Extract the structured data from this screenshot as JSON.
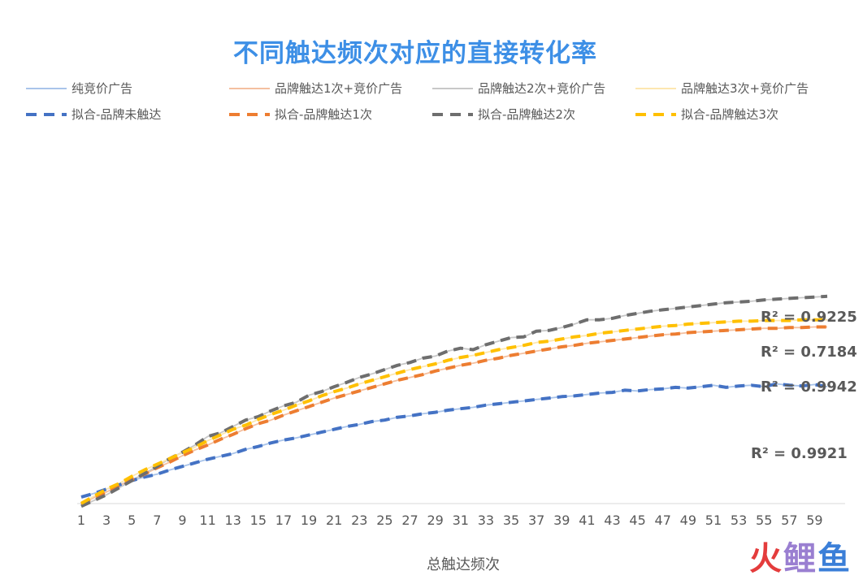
{
  "chart_data": {
    "type": "line",
    "title": "不同触达频次对应的直接转化率",
    "xlabel": "总触达频次",
    "ylabel": "",
    "x": [
      1,
      2,
      3,
      4,
      5,
      6,
      7,
      8,
      9,
      10,
      11,
      12,
      13,
      14,
      15,
      16,
      17,
      18,
      19,
      20,
      21,
      22,
      23,
      24,
      25,
      26,
      27,
      28,
      29,
      30,
      31,
      32,
      33,
      34,
      35,
      36,
      37,
      38,
      39,
      40,
      41,
      42,
      43,
      44,
      45,
      46,
      47,
      48,
      49,
      50,
      51,
      52,
      53,
      54,
      55,
      56,
      57,
      58,
      59,
      60
    ],
    "x_tick_labels": [
      "1",
      "3",
      "5",
      "7",
      "9",
      "11",
      "13",
      "15",
      "17",
      "19",
      "21",
      "23",
      "25",
      "27",
      "29",
      "31",
      "33",
      "35",
      "37",
      "39",
      "41",
      "43",
      "45",
      "47",
      "49",
      "51",
      "53",
      "55",
      "57",
      "59"
    ],
    "ylim": [
      0,
      42
    ],
    "y_tick_labels_shown": false,
    "grid": false,
    "legend_position": "top",
    "series": [
      {
        "name": "纯竞价广告",
        "style": "solid",
        "color": "#a9c4ea",
        "values": [
          0.7,
          1.2,
          1.8,
          2.4,
          3.0,
          3.5,
          3.9,
          4.5,
          5.0,
          5.5,
          6.0,
          6.4,
          6.8,
          7.4,
          7.8,
          8.3,
          8.7,
          9.0,
          9.4,
          9.8,
          10.2,
          10.6,
          10.9,
          11.3,
          11.5,
          11.9,
          12.1,
          12.4,
          12.6,
          12.9,
          13.1,
          13.3,
          13.6,
          13.8,
          14.0,
          14.2,
          14.4,
          14.6,
          14.8,
          14.9,
          15.1,
          15.3,
          15.4,
          15.7,
          15.6,
          15.8,
          15.9,
          16.1,
          16.0,
          16.2,
          16.4,
          16.1,
          16.3,
          16.4,
          16.2,
          16.6,
          16.4,
          16.3,
          16.5,
          16.2
        ]
      },
      {
        "name": "品牌触达1次+竞价广告",
        "style": "solid",
        "color": "#f4c0a0",
        "values": [
          -0.3,
          0.6,
          1.4,
          2.3,
          3.1,
          3.9,
          4.8,
          5.6,
          6.5,
          7.3,
          8.0,
          8.8,
          9.5,
          10.3,
          11.0,
          11.5,
          12.2,
          12.8,
          13.4,
          14.0,
          14.6,
          15.1,
          15.6,
          16.1,
          16.6,
          17.1,
          17.5,
          17.9,
          18.4,
          18.8,
          19.2,
          19.5,
          19.9,
          20.2,
          20.6,
          20.9,
          21.2,
          21.5,
          21.8,
          22.0,
          22.3,
          22.5,
          22.7,
          22.9,
          23.1,
          23.3,
          23.5,
          23.6,
          23.8,
          23.9,
          24.0,
          24.1,
          24.2,
          24.3,
          24.4,
          24.4,
          24.5,
          24.5,
          24.6,
          24.6
        ]
      },
      {
        "name": "品牌触达2次+竞价广告",
        "style": "solid",
        "color": "#c8c8c8",
        "values": [
          -0.6,
          0.2,
          1.0,
          2.0,
          3.0,
          4.0,
          5.0,
          6.1,
          7.0,
          8.0,
          9.2,
          9.7,
          10.6,
          11.5,
          12.0,
          12.8,
          13.5,
          14.0,
          15.0,
          15.5,
          16.2,
          16.8,
          17.5,
          18.0,
          18.6,
          19.2,
          19.6,
          20.2,
          20.5,
          21.2,
          21.6,
          21.4,
          22.1,
          22.6,
          23.1,
          23.2,
          24.0,
          24.1,
          24.5,
          25.0,
          25.6,
          25.6,
          25.8,
          26.2,
          26.5,
          26.8,
          27.0,
          27.2,
          27.4,
          27.6,
          27.8,
          28.0,
          28.1,
          28.2,
          28.4,
          28.5,
          28.6,
          28.7,
          28.8,
          28.9
        ]
      },
      {
        "name": "品牌触达3次+竞价广告",
        "style": "solid",
        "color": "#fde7b0",
        "values": [
          -0.2,
          0.8,
          1.8,
          2.6,
          3.6,
          4.5,
          5.3,
          6.1,
          6.9,
          7.7,
          8.6,
          9.4,
          10.2,
          10.8,
          11.6,
          12.3,
          12.9,
          13.6,
          14.2,
          14.9,
          15.5,
          16.0,
          16.6,
          17.1,
          17.6,
          18.1,
          18.6,
          19.0,
          19.4,
          19.9,
          20.3,
          20.6,
          21.0,
          21.4,
          21.7,
          22.0,
          22.4,
          22.6,
          22.9,
          23.2,
          23.4,
          23.7,
          23.9,
          24.1,
          24.3,
          24.5,
          24.7,
          24.8,
          25.0,
          25.1,
          25.2,
          25.3,
          25.4,
          25.4,
          25.5,
          25.5,
          25.5,
          25.6,
          25.6,
          25.6
        ]
      },
      {
        "name": "拟合-品牌未触达",
        "style": "dashed",
        "color": "#4472c4",
        "r_squared_label": "R² = 0.9921",
        "values": [
          0.7,
          1.2,
          1.8,
          2.4,
          3.0,
          3.5,
          3.9,
          4.5,
          5.0,
          5.5,
          6.0,
          6.4,
          6.8,
          7.4,
          7.8,
          8.3,
          8.7,
          9.0,
          9.4,
          9.8,
          10.2,
          10.6,
          10.9,
          11.3,
          11.5,
          11.9,
          12.1,
          12.4,
          12.6,
          12.9,
          13.1,
          13.3,
          13.6,
          13.8,
          14.0,
          14.2,
          14.4,
          14.6,
          14.8,
          14.9,
          15.1,
          15.3,
          15.4,
          15.7,
          15.6,
          15.8,
          15.9,
          16.1,
          16.0,
          16.2,
          16.4,
          16.1,
          16.3,
          16.4,
          16.2,
          16.6,
          16.4,
          16.3,
          16.5,
          16.2
        ]
      },
      {
        "name": "拟合-品牌触达1次",
        "style": "dashed",
        "color": "#ed7d31",
        "r_squared_label": "R² = 0.9942",
        "values": [
          -0.3,
          0.6,
          1.4,
          2.3,
          3.1,
          3.9,
          4.8,
          5.6,
          6.5,
          7.3,
          8.0,
          8.8,
          9.5,
          10.3,
          11.0,
          11.5,
          12.2,
          12.8,
          13.4,
          14.0,
          14.6,
          15.1,
          15.6,
          16.1,
          16.6,
          17.1,
          17.5,
          17.9,
          18.4,
          18.8,
          19.2,
          19.5,
          19.9,
          20.2,
          20.6,
          20.9,
          21.2,
          21.5,
          21.8,
          22.0,
          22.3,
          22.5,
          22.7,
          22.9,
          23.1,
          23.3,
          23.5,
          23.6,
          23.8,
          23.9,
          24.0,
          24.1,
          24.2,
          24.3,
          24.4,
          24.4,
          24.5,
          24.5,
          24.6,
          24.6
        ]
      },
      {
        "name": "拟合-品牌触达2次",
        "style": "dashed",
        "color": "#6e6e6e",
        "r_squared_label": "R² = 0.7184",
        "values": [
          -0.6,
          0.2,
          1.0,
          2.0,
          3.0,
          4.0,
          5.0,
          6.1,
          7.0,
          8.0,
          9.2,
          9.7,
          10.6,
          11.5,
          12.0,
          12.8,
          13.5,
          14.0,
          15.0,
          15.5,
          16.2,
          16.8,
          17.5,
          18.0,
          18.6,
          19.2,
          19.6,
          20.2,
          20.5,
          21.2,
          21.6,
          21.4,
          22.1,
          22.6,
          23.1,
          23.2,
          24.0,
          24.1,
          24.5,
          25.0,
          25.6,
          25.6,
          25.8,
          26.2,
          26.5,
          26.8,
          27.0,
          27.2,
          27.4,
          27.6,
          27.8,
          28.0,
          28.1,
          28.2,
          28.4,
          28.5,
          28.6,
          28.7,
          28.8,
          28.9
        ]
      },
      {
        "name": "拟合-品牌触达3次",
        "style": "dashed",
        "color": "#ffc000",
        "r_squared_label": "R² = 0.9225",
        "values": [
          -0.2,
          0.8,
          1.8,
          2.6,
          3.6,
          4.5,
          5.3,
          6.1,
          6.9,
          7.7,
          8.6,
          9.4,
          10.2,
          10.8,
          11.6,
          12.3,
          12.9,
          13.6,
          14.2,
          14.9,
          15.5,
          16.0,
          16.6,
          17.1,
          17.6,
          18.1,
          18.6,
          19.0,
          19.4,
          19.9,
          20.3,
          20.6,
          21.0,
          21.4,
          21.7,
          22.0,
          22.4,
          22.6,
          22.9,
          23.2,
          23.4,
          23.7,
          23.9,
          24.1,
          24.3,
          24.5,
          24.7,
          24.8,
          25.0,
          25.1,
          25.2,
          25.3,
          25.4,
          25.4,
          25.5,
          25.5,
          25.5,
          25.6,
          25.6,
          25.6
        ]
      }
    ]
  },
  "watermark": {
    "part1": "火",
    "part2": "鲤",
    "part3": "鱼"
  }
}
